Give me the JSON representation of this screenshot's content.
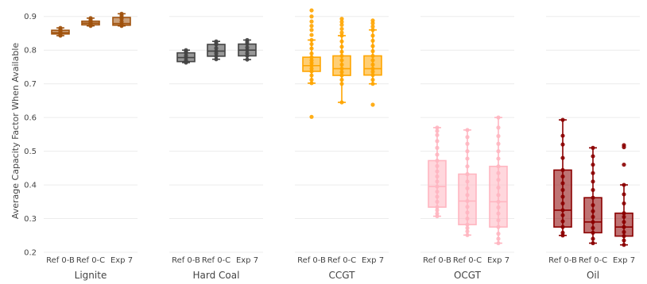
{
  "chart_data": {
    "type": "box",
    "ylabel": "Average Capacity Factor When Available",
    "ylim": [
      0.2,
      0.93
    ],
    "yticks": [
      "0.2",
      "0.3",
      "0.4",
      "0.5",
      "0.6",
      "0.7",
      "0.8",
      "0.9"
    ],
    "categories": [
      "Ref 0-B",
      "Ref 0-C",
      "Exp 7"
    ],
    "grid": true,
    "panels": [
      {
        "name": "Lignite",
        "color": "#a0520d",
        "boxes": [
          {
            "category": "Ref 0-B",
            "min": 0.843,
            "q1": 0.848,
            "median": 0.852,
            "q3": 0.859,
            "max": 0.866,
            "points": [
              0.843,
              0.845,
              0.848,
              0.852,
              0.855,
              0.859,
              0.862,
              0.866
            ]
          },
          {
            "category": "Ref 0-C",
            "min": 0.872,
            "q1": 0.875,
            "median": 0.88,
            "q3": 0.886,
            "max": 0.895,
            "points": [
              0.872,
              0.875,
              0.878,
              0.88,
              0.884,
              0.886,
              0.89,
              0.895
            ]
          },
          {
            "category": "Exp 7",
            "min": 0.872,
            "q1": 0.874,
            "median": 0.879,
            "q3": 0.897,
            "max": 0.908,
            "points": [
              0.872,
              0.874,
              0.879,
              0.885,
              0.893,
              0.897,
              0.903,
              0.908
            ]
          }
        ]
      },
      {
        "name": "Hard Coal",
        "color": "#444444",
        "boxes": [
          {
            "category": "Ref 0-B",
            "min": 0.763,
            "q1": 0.766,
            "median": 0.778,
            "q3": 0.792,
            "max": 0.8,
            "points": [
              0.763,
              0.766,
              0.77,
              0.778,
              0.784,
              0.792,
              0.796,
              0.8
            ]
          },
          {
            "category": "Ref 0-C",
            "min": 0.773,
            "q1": 0.782,
            "median": 0.797,
            "q3": 0.817,
            "max": 0.826,
            "points": [
              0.773,
              0.782,
              0.79,
              0.797,
              0.806,
              0.817,
              0.822,
              0.826
            ]
          },
          {
            "category": "Exp 7",
            "min": 0.772,
            "q1": 0.783,
            "median": 0.8,
            "q3": 0.818,
            "max": 0.83,
            "points": [
              0.772,
              0.783,
              0.791,
              0.8,
              0.808,
              0.818,
              0.824,
              0.83
            ]
          }
        ]
      },
      {
        "name": "CCGT",
        "color": "#ffa500",
        "boxes": [
          {
            "category": "Ref 0-B",
            "min": 0.702,
            "q1": 0.737,
            "median": 0.754,
            "q3": 0.779,
            "max": 0.83,
            "points": [
              0.602,
              0.702,
              0.712,
              0.725,
              0.737,
              0.745,
              0.754,
              0.762,
              0.77,
              0.779,
              0.79,
              0.805,
              0.818,
              0.83,
              0.845,
              0.86,
              0.872,
              0.885,
              0.9,
              0.918
            ]
          },
          {
            "category": "Ref 0-C",
            "min": 0.645,
            "q1": 0.725,
            "median": 0.745,
            "q3": 0.783,
            "max": 0.843,
            "points": [
              0.645,
              0.7,
              0.712,
              0.725,
              0.735,
              0.745,
              0.757,
              0.77,
              0.783,
              0.795,
              0.81,
              0.826,
              0.843,
              0.852,
              0.863,
              0.875,
              0.884,
              0.893
            ]
          },
          {
            "category": "Exp 7",
            "min": 0.7,
            "q1": 0.726,
            "median": 0.745,
            "q3": 0.783,
            "max": 0.86,
            "points": [
              0.638,
              0.7,
              0.712,
              0.726,
              0.736,
              0.745,
              0.757,
              0.77,
              0.783,
              0.797,
              0.812,
              0.828,
              0.843,
              0.86,
              0.87,
              0.88,
              0.888
            ]
          }
        ]
      },
      {
        "name": "OCGT",
        "color": "#ffb6c1",
        "boxes": [
          {
            "category": "Ref 0-B",
            "min": 0.307,
            "q1": 0.334,
            "median": 0.395,
            "q3": 0.472,
            "max": 0.57,
            "points": [
              0.307,
              0.315,
              0.325,
              0.334,
              0.35,
              0.365,
              0.38,
              0.395,
              0.41,
              0.425,
              0.44,
              0.456,
              0.472,
              0.49,
              0.51,
              0.53,
              0.548,
              0.56,
              0.57
            ]
          },
          {
            "category": "Ref 0-C",
            "min": 0.251,
            "q1": 0.282,
            "median": 0.352,
            "q3": 0.432,
            "max": 0.563,
            "points": [
              0.251,
              0.262,
              0.272,
              0.282,
              0.3,
              0.318,
              0.335,
              0.352,
              0.37,
              0.39,
              0.41,
              0.432,
              0.455,
              0.478,
              0.5,
              0.522,
              0.542,
              0.563
            ]
          },
          {
            "category": "Exp 7",
            "min": 0.227,
            "q1": 0.275,
            "median": 0.35,
            "q3": 0.455,
            "max": 0.6,
            "points": [
              0.227,
              0.24,
              0.255,
              0.275,
              0.295,
              0.315,
              0.333,
              0.35,
              0.37,
              0.392,
              0.415,
              0.435,
              0.455,
              0.478,
              0.5,
              0.522,
              0.545,
              0.57,
              0.6
            ]
          }
        ]
      },
      {
        "name": "Oil",
        "color": "#8b0000",
        "boxes": [
          {
            "category": "Ref 0-B",
            "min": 0.25,
            "q1": 0.275,
            "median": 0.325,
            "q3": 0.444,
            "max": 0.593,
            "points": [
              0.25,
              0.258,
              0.275,
              0.292,
              0.31,
              0.325,
              0.345,
              0.365,
              0.385,
              0.405,
              0.425,
              0.444,
              0.48,
              0.52,
              0.546,
              0.593
            ]
          },
          {
            "category": "Ref 0-C",
            "min": 0.227,
            "q1": 0.258,
            "median": 0.29,
            "q3": 0.362,
            "max": 0.51,
            "points": [
              0.227,
              0.24,
              0.258,
              0.272,
              0.29,
              0.305,
              0.322,
              0.34,
              0.362,
              0.385,
              0.41,
              0.435,
              0.46,
              0.485,
              0.51
            ]
          },
          {
            "category": "Exp 7",
            "min": 0.222,
            "q1": 0.248,
            "median": 0.275,
            "q3": 0.316,
            "max": 0.4,
            "points": [
              0.222,
              0.235,
              0.248,
              0.26,
              0.275,
              0.29,
              0.305,
              0.316,
              0.345,
              0.372,
              0.4,
              0.46,
              0.512,
              0.518
            ]
          }
        ]
      }
    ]
  }
}
